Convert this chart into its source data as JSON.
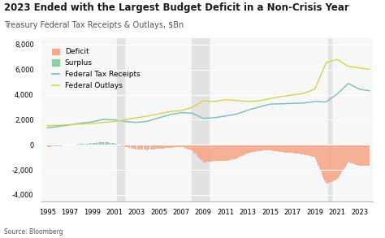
{
  "title": "2023 Ended with the Largest Budget Deficit in a Non-Crisis Year",
  "subtitle": "Treasury Federal Tax Receipts & Outlays, $Bn",
  "source": "Source: Bloomberg",
  "recession_bands": [
    {
      "start": 2001.25,
      "end": 2001.92
    },
    {
      "start": 2007.92,
      "end": 2009.5
    },
    {
      "start": 2020.17,
      "end": 2020.5
    }
  ],
  "ylim": [
    -4500,
    8500
  ],
  "yticks": [
    -4000,
    -2000,
    0,
    2000,
    4000,
    6000,
    8000
  ],
  "xlim": [
    1994.5,
    2024.2
  ],
  "deficit_color": "#f5a98a",
  "surplus_color": "#8ecfa8",
  "receipts_color": "#7bbcbc",
  "outlays_color": "#d4d44a",
  "recession_color": "#e2e2e2",
  "bg_color": "#ffffff",
  "plot_bg_color": "#f7f7f7",
  "title_fontsize": 8.5,
  "subtitle_fontsize": 7,
  "tick_fontsize": 6,
  "legend_fontsize": 6.5,
  "xtick_years": [
    1995,
    1997,
    1999,
    2001,
    2003,
    2005,
    2007,
    2009,
    2011,
    2013,
    2015,
    2017,
    2019,
    2021,
    2023
  ]
}
